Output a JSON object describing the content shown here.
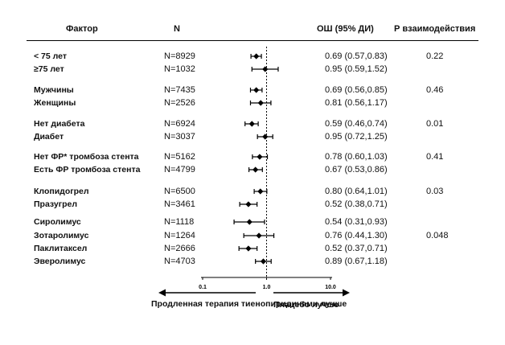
{
  "chart_data": {
    "type": "forest",
    "title": "",
    "headers": {
      "factor": "Фактор",
      "n": "N",
      "or": "ОШ (95% ДИ)",
      "p": "Р взаимодействия"
    },
    "x_scale": "log",
    "xlim": [
      0.1,
      10.0
    ],
    "x_ticks": [
      "0.1",
      "1.0",
      "10.0"
    ],
    "x_tick_values": [
      0.1,
      1.0,
      10.0
    ],
    "reference_line": 1.0,
    "left_label": "Продленная терапия тиенопиридинами лучше",
    "right_label": "Плацебо лучше",
    "groups": [
      {
        "p": "0.22",
        "rows": [
          {
            "factor": "< 75 лет",
            "n": "N=8929",
            "or_text": "0.69 (0.57,0.83)",
            "or": 0.69,
            "lo": 0.57,
            "hi": 0.83
          },
          {
            "factor": "≥75 лет",
            "n": "N=1032",
            "or_text": "0.95 (0.59,1.52)",
            "or": 0.95,
            "lo": 0.59,
            "hi": 1.52
          }
        ]
      },
      {
        "p": "0.46",
        "rows": [
          {
            "factor": "Мужчины",
            "n": "N=7435",
            "or_text": "0.69 (0.56,0.85)",
            "or": 0.69,
            "lo": 0.56,
            "hi": 0.85
          },
          {
            "factor": "Женщины",
            "n": "N=2526",
            "or_text": "0.81 (0.56,1.17)",
            "or": 0.81,
            "lo": 0.56,
            "hi": 1.17
          }
        ]
      },
      {
        "p": "0.01",
        "rows": [
          {
            "factor": "Нет диабета",
            "n": "N=6924",
            "or_text": "0.59 (0.46,0.74)",
            "or": 0.59,
            "lo": 0.46,
            "hi": 0.74
          },
          {
            "factor": "Диабет",
            "n": "N=3037",
            "or_text": "0.95 (0.72,1.25)",
            "or": 0.95,
            "lo": 0.72,
            "hi": 1.25
          }
        ]
      },
      {
        "p": "0.41",
        "rows": [
          {
            "factor": "Нет ФР* тромбоза стента",
            "n": "N=5162",
            "or_text": "0.78 (0.60,1.03)",
            "or": 0.78,
            "lo": 0.6,
            "hi": 1.03
          },
          {
            "factor": "Есть ФР тромбоза стента",
            "n": "N=4799",
            "or_text": "0.67 (0.53,0.86)",
            "or": 0.67,
            "lo": 0.53,
            "hi": 0.86
          }
        ]
      },
      {
        "p": "0.03",
        "rows": [
          {
            "factor": "Клопидогрел",
            "n": "N=6500",
            "or_text": "0.80 (0.64,1.01)",
            "or": 0.8,
            "lo": 0.64,
            "hi": 1.01
          },
          {
            "factor": "Празугрел",
            "n": "N=3461",
            "or_text": "0.52 (0.38,0.71)",
            "or": 0.52,
            "lo": 0.38,
            "hi": 0.71
          }
        ]
      },
      {
        "p": "0.048",
        "rows": [
          {
            "factor": "Сиролимус",
            "n": "N=1118",
            "or_text": "0.54 (0.31,0.93)",
            "or": 0.54,
            "lo": 0.31,
            "hi": 0.93
          },
          {
            "factor": "Зотаролимус",
            "n": "N=1264",
            "or_text": "0.76 (0.44,1.30)",
            "or": 0.76,
            "lo": 0.44,
            "hi": 1.3
          },
          {
            "factor": "Паклитаксел",
            "n": "N=2666",
            "or_text": "0.52 (0.37,0.71)",
            "or": 0.52,
            "lo": 0.37,
            "hi": 0.71
          },
          {
            "factor": "Эверолимус",
            "n": "N=4703",
            "or_text": "0.89 (0.67,1.18)",
            "or": 0.89,
            "lo": 0.67,
            "hi": 1.18
          }
        ]
      }
    ]
  }
}
